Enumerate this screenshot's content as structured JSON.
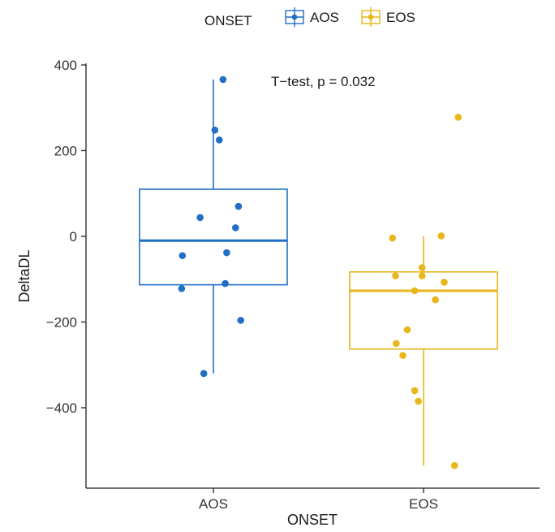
{
  "chart_data": {
    "type": "box",
    "title": "",
    "xlabel": "ONSET",
    "ylabel": "DeltaDL",
    "categories": [
      "AOS",
      "EOS"
    ],
    "ylim": [
      -580,
      400
    ],
    "yticks": [
      400,
      200,
      0,
      -200,
      -400
    ],
    "grid": false,
    "legend": {
      "title": "ONSET",
      "placement": "top",
      "entries": [
        "AOS",
        "EOS"
      ]
    },
    "annotation": "T−test, p = 0.032",
    "series": [
      {
        "name": "AOS",
        "color": "#1f6fc5",
        "box": {
          "whisker_low": -320,
          "q1": -113,
          "median": -10,
          "q3": 110,
          "whisker_high": 366
        },
        "points": [
          {
            "jitter": 0.13,
            "y": 366
          },
          {
            "jitter": 0.02,
            "y": 248
          },
          {
            "jitter": 0.08,
            "y": 225
          },
          {
            "jitter": 0.34,
            "y": 70
          },
          {
            "jitter": -0.18,
            "y": 44
          },
          {
            "jitter": 0.3,
            "y": 20
          },
          {
            "jitter": 0.18,
            "y": -38
          },
          {
            "jitter": -0.42,
            "y": -45
          },
          {
            "jitter": 0.16,
            "y": -110
          },
          {
            "jitter": -0.43,
            "y": -122
          },
          {
            "jitter": 0.37,
            "y": -196
          },
          {
            "jitter": -0.13,
            "y": -320
          }
        ]
      },
      {
        "name": "EOS",
        "color": "#e8b51a",
        "box": {
          "whisker_low": -535,
          "q1": -263,
          "median": -127,
          "q3": -83,
          "whisker_high": 0
        },
        "points": [
          {
            "jitter": 0.47,
            "y": 278
          },
          {
            "jitter": 0.24,
            "y": 1
          },
          {
            "jitter": -0.42,
            "y": -4
          },
          {
            "jitter": -0.02,
            "y": -73
          },
          {
            "jitter": -0.38,
            "y": -92
          },
          {
            "jitter": -0.02,
            "y": -92
          },
          {
            "jitter": 0.28,
            "y": -107
          },
          {
            "jitter": -0.12,
            "y": -127
          },
          {
            "jitter": 0.16,
            "y": -148
          },
          {
            "jitter": -0.22,
            "y": -218
          },
          {
            "jitter": -0.37,
            "y": -250
          },
          {
            "jitter": -0.28,
            "y": -278
          },
          {
            "jitter": -0.12,
            "y": -360
          },
          {
            "jitter": -0.07,
            "y": -385
          },
          {
            "jitter": 0.42,
            "y": -535
          }
        ]
      }
    ]
  }
}
